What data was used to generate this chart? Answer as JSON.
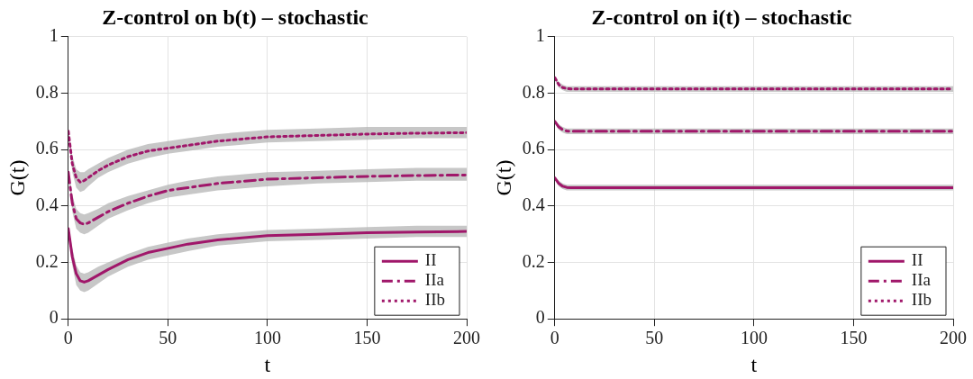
{
  "chart_data": [
    {
      "type": "line",
      "title": "Z-control on b(t) – stochastic",
      "xlabel": "t",
      "ylabel": "G(t)",
      "xlim": [
        0,
        200
      ],
      "xticks": [
        0,
        50,
        100,
        150,
        200
      ],
      "ylim": [
        0,
        1
      ],
      "yticks": [
        0,
        0.2,
        0.4,
        0.6,
        0.8,
        1
      ],
      "grid": true,
      "legend": "bottom right",
      "x": [
        0,
        2,
        4,
        6,
        8,
        10,
        15,
        20,
        30,
        40,
        50,
        60,
        75,
        100,
        125,
        150,
        175,
        200
      ],
      "series": [
        {
          "name": "II",
          "color": "#a0176a",
          "line_style": "solid",
          "values": [
            0.32,
            0.22,
            0.16,
            0.135,
            0.13,
            0.135,
            0.155,
            0.175,
            0.21,
            0.235,
            0.25,
            0.265,
            0.28,
            0.295,
            0.3,
            0.305,
            0.308,
            0.31
          ],
          "lower": [
            0.31,
            0.19,
            0.12,
            0.1,
            0.095,
            0.1,
            0.125,
            0.15,
            0.185,
            0.21,
            0.225,
            0.24,
            0.26,
            0.275,
            0.28,
            0.285,
            0.29,
            0.29
          ],
          "upper": [
            0.33,
            0.25,
            0.19,
            0.165,
            0.16,
            0.165,
            0.185,
            0.2,
            0.23,
            0.255,
            0.27,
            0.285,
            0.3,
            0.315,
            0.32,
            0.325,
            0.33,
            0.33
          ]
        },
        {
          "name": "IIa",
          "color": "#a0176a",
          "line_style": "dashed",
          "values": [
            0.52,
            0.41,
            0.355,
            0.34,
            0.335,
            0.34,
            0.36,
            0.38,
            0.41,
            0.435,
            0.455,
            0.465,
            0.48,
            0.495,
            0.5,
            0.505,
            0.508,
            0.51
          ],
          "lower": [
            0.51,
            0.38,
            0.32,
            0.305,
            0.3,
            0.305,
            0.33,
            0.355,
            0.385,
            0.41,
            0.43,
            0.44,
            0.455,
            0.47,
            0.48,
            0.485,
            0.49,
            0.49
          ],
          "upper": [
            0.53,
            0.44,
            0.39,
            0.375,
            0.37,
            0.375,
            0.39,
            0.41,
            0.435,
            0.455,
            0.475,
            0.49,
            0.505,
            0.52,
            0.525,
            0.53,
            0.535,
            0.535
          ]
        },
        {
          "name": "IIb",
          "color": "#a0176a",
          "line_style": "dotted",
          "values": [
            0.665,
            0.55,
            0.5,
            0.485,
            0.49,
            0.5,
            0.525,
            0.545,
            0.575,
            0.595,
            0.605,
            0.615,
            0.63,
            0.645,
            0.65,
            0.655,
            0.658,
            0.66
          ],
          "lower": [
            0.655,
            0.52,
            0.465,
            0.45,
            0.455,
            0.47,
            0.5,
            0.52,
            0.55,
            0.57,
            0.585,
            0.595,
            0.61,
            0.625,
            0.63,
            0.635,
            0.64,
            0.64
          ],
          "upper": [
            0.675,
            0.58,
            0.53,
            0.52,
            0.52,
            0.53,
            0.55,
            0.57,
            0.6,
            0.62,
            0.63,
            0.64,
            0.655,
            0.67,
            0.675,
            0.68,
            0.68,
            0.68
          ]
        }
      ]
    },
    {
      "type": "line",
      "title": "Z-control on i(t) – stochastic",
      "xlabel": "t",
      "ylabel": "G(t)",
      "xlim": [
        0,
        200
      ],
      "xticks": [
        0,
        50,
        100,
        150,
        200
      ],
      "ylim": [
        0,
        1
      ],
      "yticks": [
        0,
        0.2,
        0.4,
        0.6,
        0.8,
        1
      ],
      "grid": true,
      "legend": "bottom right",
      "x": [
        0,
        2,
        4,
        6,
        8,
        10,
        20,
        50,
        100,
        150,
        200
      ],
      "series": [
        {
          "name": "II",
          "color": "#a0176a",
          "line_style": "solid",
          "values": [
            0.5,
            0.48,
            0.47,
            0.466,
            0.465,
            0.465,
            0.465,
            0.465,
            0.465,
            0.465,
            0.465
          ],
          "lower": [
            0.495,
            0.47,
            0.46,
            0.455,
            0.455,
            0.455,
            0.455,
            0.455,
            0.455,
            0.455,
            0.455
          ],
          "upper": [
            0.505,
            0.49,
            0.48,
            0.475,
            0.475,
            0.475,
            0.475,
            0.475,
            0.475,
            0.475,
            0.475
          ]
        },
        {
          "name": "IIa",
          "color": "#a0176a",
          "line_style": "dashed",
          "values": [
            0.7,
            0.68,
            0.67,
            0.666,
            0.665,
            0.665,
            0.665,
            0.665,
            0.665,
            0.665,
            0.665
          ],
          "lower": [
            0.695,
            0.67,
            0.66,
            0.655,
            0.655,
            0.655,
            0.655,
            0.655,
            0.655,
            0.655,
            0.655
          ],
          "upper": [
            0.705,
            0.69,
            0.68,
            0.675,
            0.675,
            0.675,
            0.675,
            0.675,
            0.675,
            0.675,
            0.675
          ]
        },
        {
          "name": "IIb",
          "color": "#a0176a",
          "line_style": "dotted",
          "values": [
            0.855,
            0.83,
            0.82,
            0.816,
            0.815,
            0.815,
            0.815,
            0.815,
            0.815,
            0.815,
            0.815
          ],
          "lower": [
            0.85,
            0.82,
            0.81,
            0.805,
            0.805,
            0.805,
            0.805,
            0.805,
            0.805,
            0.805,
            0.805
          ],
          "upper": [
            0.86,
            0.84,
            0.83,
            0.825,
            0.825,
            0.825,
            0.825,
            0.825,
            0.825,
            0.825,
            0.825
          ]
        }
      ]
    }
  ]
}
